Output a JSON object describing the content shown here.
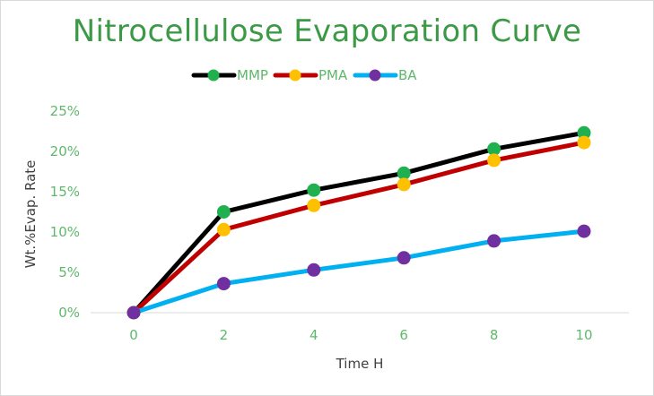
{
  "chart_data": {
    "type": "line",
    "title": "Nitrocellulose Evaporation Curve",
    "xlabel": "Time H",
    "ylabel": "Wt.%Evap. Rate",
    "x": [
      0,
      2,
      4,
      6,
      8,
      10
    ],
    "x_ticks": [
      "0",
      "2",
      "4",
      "6",
      "8",
      "10"
    ],
    "y_ticks": [
      "0%",
      "5%",
      "10%",
      "15%",
      "20%",
      "25%"
    ],
    "xlim": [
      0,
      10
    ],
    "ylim": [
      0,
      25
    ],
    "grid": false,
    "legend_position": "top",
    "series": [
      {
        "name": "MMP",
        "line_color": "#000000",
        "marker_color": "#1fb050",
        "values": [
          0,
          12.5,
          15.2,
          17.3,
          20.3,
          22.3
        ]
      },
      {
        "name": "PMA",
        "line_color": "#c00000",
        "marker_color": "#ffc000",
        "values": [
          0,
          10.3,
          13.3,
          15.9,
          18.9,
          21.1
        ]
      },
      {
        "name": "BA",
        "line_color": "#00b0f0",
        "marker_color": "#7030a0",
        "values": [
          0,
          3.6,
          5.3,
          6.8,
          8.9,
          10.1
        ]
      }
    ]
  }
}
